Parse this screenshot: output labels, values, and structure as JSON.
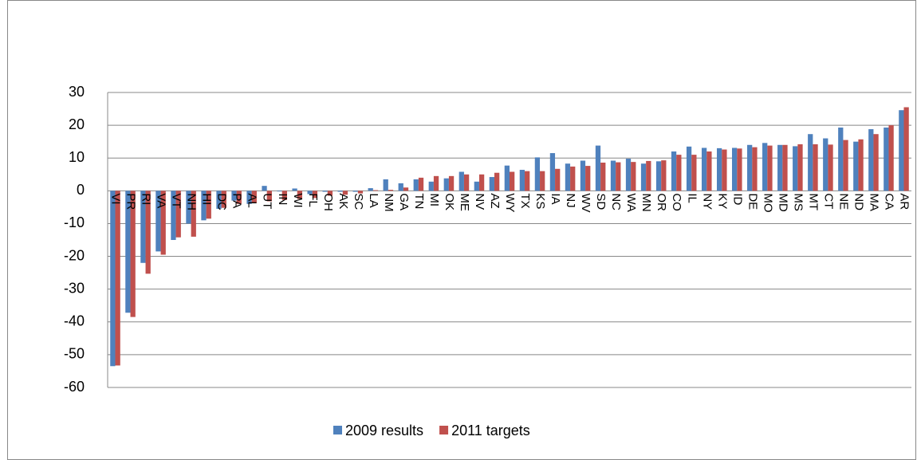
{
  "chart_data": {
    "type": "bar",
    "categories": [
      "VI",
      "PR",
      "RI",
      "VA",
      "VT",
      "NH",
      "HI",
      "DC",
      "PA",
      "AL",
      "UT",
      "IN",
      "WI",
      "FL",
      "OH",
      "AK",
      "SC",
      "LA",
      "NM",
      "GA",
      "TN",
      "MI",
      "OK",
      "ME",
      "NV",
      "AZ",
      "WY",
      "TX",
      "KS",
      "IA",
      "NJ",
      "WV",
      "SD",
      "NC",
      "WA",
      "MN",
      "OR",
      "CO",
      "IL",
      "NY",
      "KY",
      "ID",
      "DE",
      "MO",
      "MD",
      "MS",
      "MT",
      "CT",
      "NE",
      "ND",
      "MA",
      "CA",
      "AR"
    ],
    "series": [
      {
        "name": "2009 results",
        "color": "#4f81bd",
        "values": [
          -53.5,
          -37.2,
          -22,
          -18.5,
          -15,
          -10,
          -9,
          -5.5,
          -3,
          -4,
          1.5,
          -0.2,
          0.7,
          -1,
          -0.3,
          -0.3,
          -0.3,
          0.8,
          3.5,
          2.3,
          3.5,
          2.8,
          3.8,
          5.8,
          2.8,
          4.2,
          7.7,
          6.4,
          10.2,
          11.5,
          8.3,
          9.2,
          13.8,
          9.2,
          9.8,
          8.3,
          9,
          12,
          13.5,
          13.1,
          13,
          13.1,
          14,
          14.6,
          14,
          13.6,
          17.3,
          16,
          19.3,
          15,
          18.8,
          19.3,
          24.6
        ]
      },
      {
        "name": "2011 targets",
        "color": "#c0504d",
        "values": [
          -53.3,
          -38.5,
          -25.3,
          -19.5,
          -14.2,
          -14,
          -8.5,
          -5.2,
          -4,
          -3.8,
          -3.2,
          -2.8,
          -2.5,
          -2.2,
          -1.5,
          -1.2,
          -0.8,
          0.2,
          0.3,
          1,
          4,
          4.5,
          4.5,
          5,
          5,
          5.5,
          5.8,
          6,
          6,
          6.7,
          7.4,
          7.6,
          8.6,
          8.7,
          8.8,
          9.1,
          9.3,
          11,
          11,
          12,
          12.6,
          12.9,
          13.3,
          13.8,
          14,
          14.2,
          14.2,
          14.1,
          15.5,
          15.7,
          17.3,
          20,
          25.5
        ]
      }
    ],
    "ylim": [
      -60,
      30
    ],
    "yticks": [
      -60,
      -50,
      -40,
      -30,
      -20,
      -10,
      0,
      10,
      20,
      30
    ],
    "grid": true,
    "legend": "bottom"
  }
}
